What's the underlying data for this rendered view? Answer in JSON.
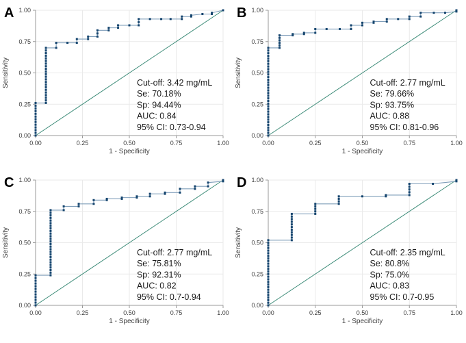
{
  "figure": {
    "xlabel": "1 - Specificity",
    "ylabel": "Sensitivity",
    "xticks": [
      "0.00",
      "0.25",
      "0.50",
      "0.75",
      "1.00"
    ],
    "yticks": [
      "0.00",
      "0.25",
      "0.50",
      "0.75",
      "1.00"
    ],
    "colors": {
      "marker": "#17466f",
      "step_line": "#7e9db9",
      "diagonal": "#3e8c79",
      "grid": "#eaeaea",
      "axis": "#9a9a9a",
      "tick_label": "#3d3d3d",
      "annotation_text": "#1a1a1a",
      "panel_label": "#000000",
      "background": "#ffffff"
    }
  },
  "chart_data": [
    {
      "panel": "A",
      "type": "line",
      "xlabel": "1 - Specificity",
      "ylabel": "Sensitivity",
      "xlim": [
        0,
        1
      ],
      "ylim": [
        0,
        1
      ],
      "grid": true,
      "diagonal_reference": true,
      "annotation": [
        "Cut-off: 3.42 mg/mL",
        "Se: 70.18%",
        "Sp: 94.44%",
        "AUC: 0.84",
        "95% CI: 0.73-0.94"
      ],
      "roc_points": [
        [
          0,
          0
        ],
        [
          0,
          0.26
        ],
        [
          0.055,
          0.26
        ],
        [
          0.055,
          0.7
        ],
        [
          0.11,
          0.7
        ],
        [
          0.11,
          0.74
        ],
        [
          0.17,
          0.74
        ],
        [
          0.22,
          0.74
        ],
        [
          0.22,
          0.77
        ],
        [
          0.28,
          0.77
        ],
        [
          0.28,
          0.79
        ],
        [
          0.33,
          0.79
        ],
        [
          0.33,
          0.84
        ],
        [
          0.39,
          0.84
        ],
        [
          0.39,
          0.86
        ],
        [
          0.44,
          0.86
        ],
        [
          0.44,
          0.88
        ],
        [
          0.5,
          0.88
        ],
        [
          0.55,
          0.88
        ],
        [
          0.55,
          0.93
        ],
        [
          0.61,
          0.93
        ],
        [
          0.67,
          0.93
        ],
        [
          0.72,
          0.93
        ],
        [
          0.78,
          0.93
        ],
        [
          0.78,
          0.95
        ],
        [
          0.83,
          0.95
        ],
        [
          0.83,
          0.96
        ],
        [
          0.89,
          0.97
        ],
        [
          0.94,
          0.97
        ],
        [
          0.94,
          0.98
        ],
        [
          1,
          1
        ]
      ]
    },
    {
      "panel": "B",
      "type": "line",
      "xlabel": "1 - Specificity",
      "ylabel": "Sensitivity",
      "xlim": [
        0,
        1
      ],
      "ylim": [
        0,
        1
      ],
      "grid": true,
      "diagonal_reference": true,
      "annotation": [
        "Cut-off: 2.77 mg/mL",
        "Se: 79.66%",
        "Sp: 93.75%",
        "AUC: 0.88",
        "95% CI: 0.81-0.96"
      ],
      "roc_points": [
        [
          0,
          0
        ],
        [
          0,
          0.7
        ],
        [
          0.06,
          0.7
        ],
        [
          0.06,
          0.8
        ],
        [
          0.13,
          0.8
        ],
        [
          0.13,
          0.81
        ],
        [
          0.19,
          0.81
        ],
        [
          0.19,
          0.82
        ],
        [
          0.25,
          0.82
        ],
        [
          0.25,
          0.85
        ],
        [
          0.31,
          0.85
        ],
        [
          0.38,
          0.85
        ],
        [
          0.44,
          0.85
        ],
        [
          0.44,
          0.88
        ],
        [
          0.5,
          0.88
        ],
        [
          0.5,
          0.9
        ],
        [
          0.56,
          0.9
        ],
        [
          0.56,
          0.91
        ],
        [
          0.63,
          0.91
        ],
        [
          0.63,
          0.93
        ],
        [
          0.69,
          0.93
        ],
        [
          0.75,
          0.93
        ],
        [
          0.75,
          0.95
        ],
        [
          0.81,
          0.95
        ],
        [
          0.81,
          0.98
        ],
        [
          0.88,
          0.98
        ],
        [
          0.94,
          0.98
        ],
        [
          1,
          0.99
        ],
        [
          1,
          1
        ]
      ]
    },
    {
      "panel": "C",
      "type": "line",
      "xlabel": "1 - Specificity",
      "ylabel": "Sensitivity",
      "xlim": [
        0,
        1
      ],
      "ylim": [
        0,
        1
      ],
      "grid": true,
      "diagonal_reference": true,
      "annotation": [
        "Cut-off: 2.77 mg/mL",
        "Se: 75.81%",
        "Sp: 92.31%",
        "AUC: 0.82",
        "95% CI: 0.7-0.94"
      ],
      "roc_points": [
        [
          0,
          0
        ],
        [
          0,
          0.24
        ],
        [
          0.08,
          0.24
        ],
        [
          0.08,
          0.76
        ],
        [
          0.15,
          0.76
        ],
        [
          0.15,
          0.79
        ],
        [
          0.23,
          0.79
        ],
        [
          0.23,
          0.81
        ],
        [
          0.31,
          0.81
        ],
        [
          0.31,
          0.84
        ],
        [
          0.38,
          0.84
        ],
        [
          0.38,
          0.85
        ],
        [
          0.46,
          0.85
        ],
        [
          0.46,
          0.86
        ],
        [
          0.54,
          0.86
        ],
        [
          0.54,
          0.87
        ],
        [
          0.61,
          0.87
        ],
        [
          0.61,
          0.89
        ],
        [
          0.69,
          0.89
        ],
        [
          0.69,
          0.9
        ],
        [
          0.77,
          0.9
        ],
        [
          0.77,
          0.93
        ],
        [
          0.85,
          0.93
        ],
        [
          0.85,
          0.95
        ],
        [
          0.92,
          0.95
        ],
        [
          0.92,
          0.98
        ],
        [
          1,
          0.99
        ],
        [
          1,
          1
        ]
      ]
    },
    {
      "panel": "D",
      "type": "line",
      "xlabel": "1 - Specificity",
      "ylabel": "Sensitivity",
      "xlim": [
        0,
        1
      ],
      "ylim": [
        0,
        1
      ],
      "grid": true,
      "diagonal_reference": true,
      "annotation": [
        "Cut-off: 2.35 mg/mL",
        "Se: 80.8%",
        "Sp: 75.0%",
        "AUC: 0.83",
        "95% CI: 0.7-0.95"
      ],
      "roc_points": [
        [
          0,
          0
        ],
        [
          0,
          0.52
        ],
        [
          0.125,
          0.52
        ],
        [
          0.125,
          0.73
        ],
        [
          0.25,
          0.73
        ],
        [
          0.25,
          0.81
        ],
        [
          0.375,
          0.81
        ],
        [
          0.375,
          0.87
        ],
        [
          0.5,
          0.87
        ],
        [
          0.625,
          0.87
        ],
        [
          0.625,
          0.88
        ],
        [
          0.75,
          0.88
        ],
        [
          0.75,
          0.97
        ],
        [
          0.875,
          0.97
        ],
        [
          1,
          0.99
        ],
        [
          1,
          1
        ]
      ]
    }
  ]
}
